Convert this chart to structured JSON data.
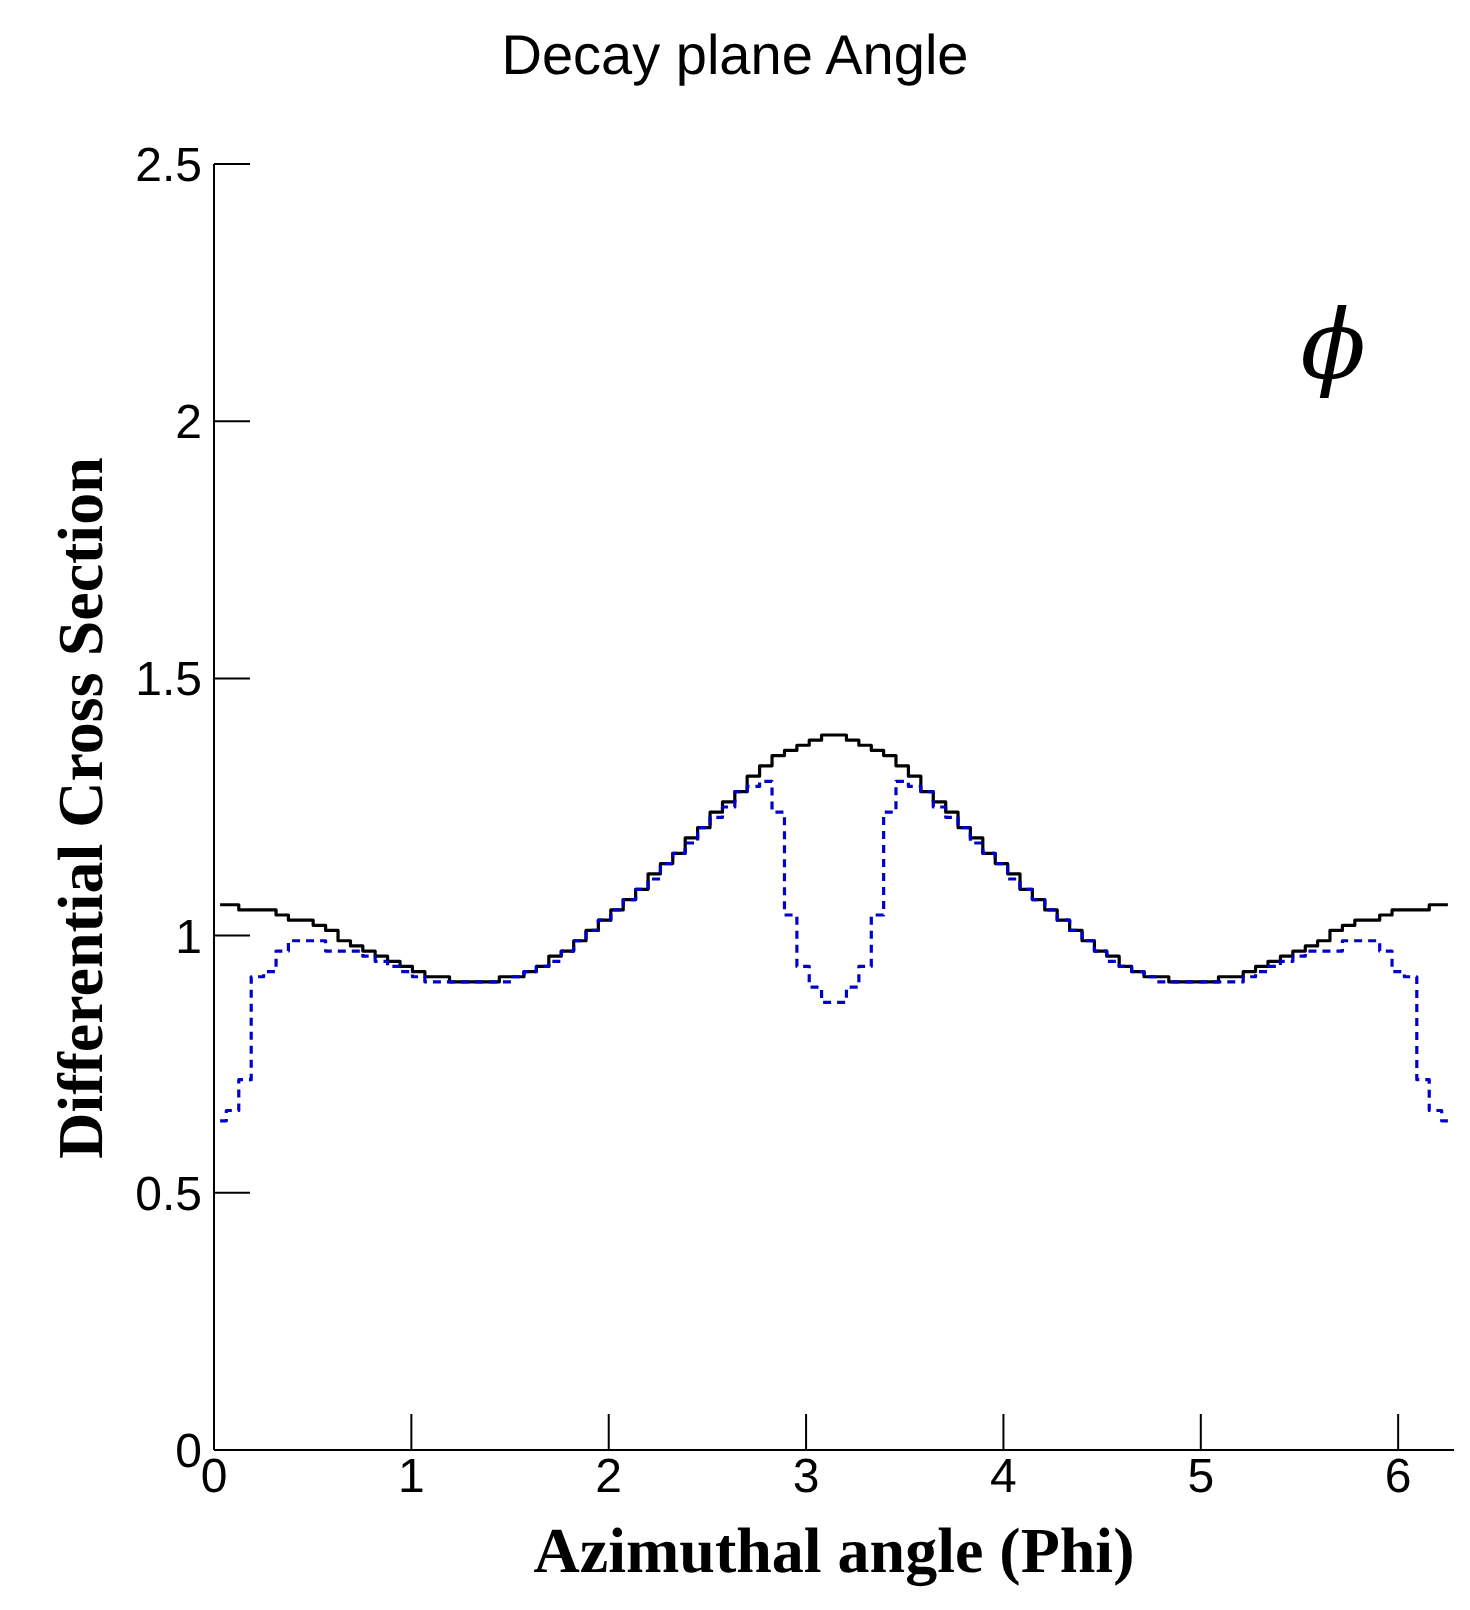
{
  "chart_data": {
    "type": "step",
    "title": "Decay plane Angle",
    "xlabel": "Azimuthal angle (Phi)",
    "ylabel": "Differential Cross Section",
    "annotations": [
      "ϕ"
    ],
    "x": [
      0.031,
      0.094,
      0.157,
      0.22,
      0.283,
      0.346,
      0.408,
      0.471,
      0.534,
      0.597,
      0.66,
      0.723,
      0.785,
      0.848,
      0.911,
      0.974,
      1.037,
      1.1,
      1.162,
      1.225,
      1.288,
      1.351,
      1.414,
      1.477,
      1.539,
      1.602,
      1.665,
      1.728,
      1.791,
      1.854,
      1.916,
      1.979,
      2.042,
      2.105,
      2.168,
      2.231,
      2.293,
      2.356,
      2.419,
      2.482,
      2.545,
      2.608,
      2.67,
      2.733,
      2.796,
      2.859,
      2.922,
      2.985,
      3.047,
      3.11,
      3.173,
      3.236,
      3.299,
      3.362,
      3.424,
      3.487,
      3.55,
      3.613,
      3.676,
      3.739,
      3.801,
      3.864,
      3.927,
      3.99,
      4.053,
      4.115,
      4.178,
      4.241,
      4.304,
      4.367,
      4.43,
      4.492,
      4.555,
      4.618,
      4.681,
      4.744,
      4.807,
      4.869,
      4.932,
      4.995,
      5.058,
      5.121,
      5.184,
      5.246,
      5.309,
      5.372,
      5.435,
      5.498,
      5.561,
      5.623,
      5.686,
      5.749,
      5.812,
      5.875,
      5.938,
      6.0,
      6.063,
      6.126,
      6.189,
      6.252
    ],
    "series": [
      {
        "color": "#000000",
        "line_style": "solid",
        "values": [
          1.06,
          1.06,
          1.05,
          1.05,
          1.05,
          1.04,
          1.03,
          1.03,
          1.02,
          1.01,
          0.99,
          0.98,
          0.97,
          0.96,
          0.95,
          0.94,
          0.93,
          0.92,
          0.92,
          0.91,
          0.91,
          0.91,
          0.91,
          0.92,
          0.92,
          0.93,
          0.94,
          0.96,
          0.97,
          0.99,
          1.01,
          1.03,
          1.05,
          1.07,
          1.09,
          1.12,
          1.14,
          1.16,
          1.19,
          1.21,
          1.24,
          1.26,
          1.28,
          1.31,
          1.33,
          1.35,
          1.36,
          1.37,
          1.38,
          1.39,
          1.39,
          1.38,
          1.37,
          1.36,
          1.35,
          1.33,
          1.31,
          1.28,
          1.26,
          1.24,
          1.21,
          1.19,
          1.16,
          1.14,
          1.12,
          1.09,
          1.07,
          1.05,
          1.03,
          1.01,
          0.99,
          0.97,
          0.96,
          0.94,
          0.93,
          0.92,
          0.92,
          0.91,
          0.91,
          0.91,
          0.91,
          0.92,
          0.92,
          0.93,
          0.94,
          0.95,
          0.96,
          0.97,
          0.98,
          0.99,
          1.01,
          1.02,
          1.03,
          1.03,
          1.04,
          1.05,
          1.05,
          1.05,
          1.06,
          1.06
        ]
      },
      {
        "color": "#0000cc",
        "line_style": "dashed",
        "values": [
          0.64,
          0.66,
          0.72,
          0.92,
          0.93,
          0.97,
          0.99,
          0.99,
          0.99,
          0.97,
          0.97,
          0.97,
          0.96,
          0.95,
          0.94,
          0.93,
          0.92,
          0.91,
          0.91,
          0.91,
          0.91,
          0.91,
          0.91,
          0.91,
          0.92,
          0.93,
          0.94,
          0.95,
          0.97,
          0.99,
          1.01,
          1.03,
          1.05,
          1.07,
          1.09,
          1.11,
          1.14,
          1.16,
          1.18,
          1.21,
          1.23,
          1.25,
          1.28,
          1.29,
          1.3,
          1.24,
          1.04,
          0.94,
          0.9,
          0.87,
          0.87,
          0.9,
          0.94,
          1.04,
          1.24,
          1.3,
          1.29,
          1.28,
          1.25,
          1.23,
          1.21,
          1.18,
          1.16,
          1.14,
          1.11,
          1.09,
          1.07,
          1.05,
          1.03,
          1.01,
          0.99,
          0.97,
          0.95,
          0.94,
          0.93,
          0.92,
          0.91,
          0.91,
          0.91,
          0.91,
          0.91,
          0.91,
          0.91,
          0.92,
          0.93,
          0.94,
          0.95,
          0.96,
          0.97,
          0.97,
          0.97,
          0.99,
          0.99,
          0.99,
          0.97,
          0.93,
          0.92,
          0.72,
          0.66,
          0.64
        ]
      }
    ],
    "xlim": [
      0,
      6.283
    ],
    "xticks": [
      0,
      1,
      2,
      3,
      4,
      5,
      6
    ],
    "ylim": [
      0,
      2.5
    ],
    "yticks": [
      0,
      0.5,
      1,
      1.5,
      2,
      2.5
    ]
  }
}
